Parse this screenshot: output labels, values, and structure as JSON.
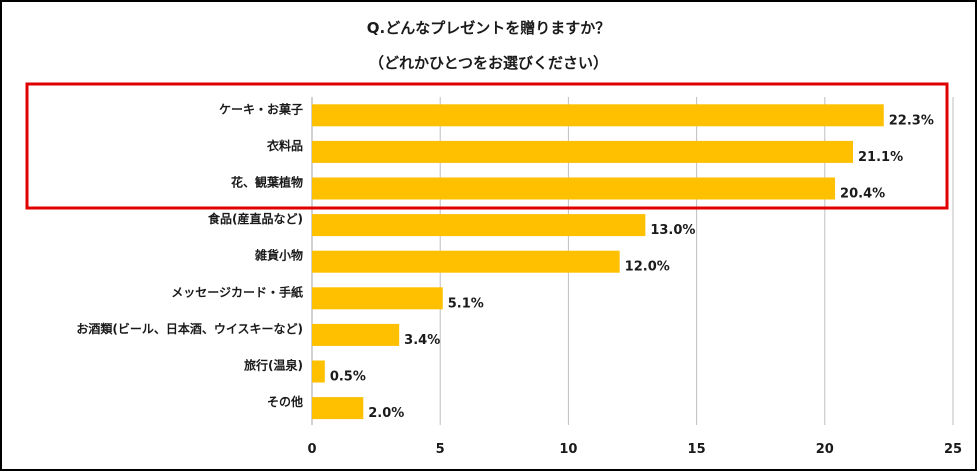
{
  "chart_data": {
    "type": "bar",
    "orientation": "horizontal",
    "title": "Q.どんなプレゼントを贈りますか？",
    "subtitle": "（どれかひとつをお選びください）",
    "categories": [
      "ケーキ・お菓子",
      "衣料品",
      "花、観葉植物",
      "食品(産直品など)",
      "雑貨小物",
      "メッセージカード・手紙",
      "お酒類(ビール、日本酒、ウイスキーなど)",
      "旅行(温泉)",
      "その他"
    ],
    "values": [
      22.3,
      21.1,
      20.4,
      13.0,
      12.0,
      5.1,
      3.4,
      0.5,
      2.0
    ],
    "value_labels": [
      "22.3%",
      "21.1%",
      "20.4%",
      "13.0%",
      "12.0%",
      "5.1%",
      "3.4%",
      "0.5%",
      "2.0%"
    ],
    "xlim": [
      0,
      25
    ],
    "xticks": [
      "0",
      "5",
      "10",
      "15",
      "20",
      "25"
    ],
    "grid": true,
    "highlight_top_n": 3,
    "colors": {
      "bar": "#FFC000",
      "grid": "#BFBFBF",
      "highlight": "#E00000"
    }
  }
}
